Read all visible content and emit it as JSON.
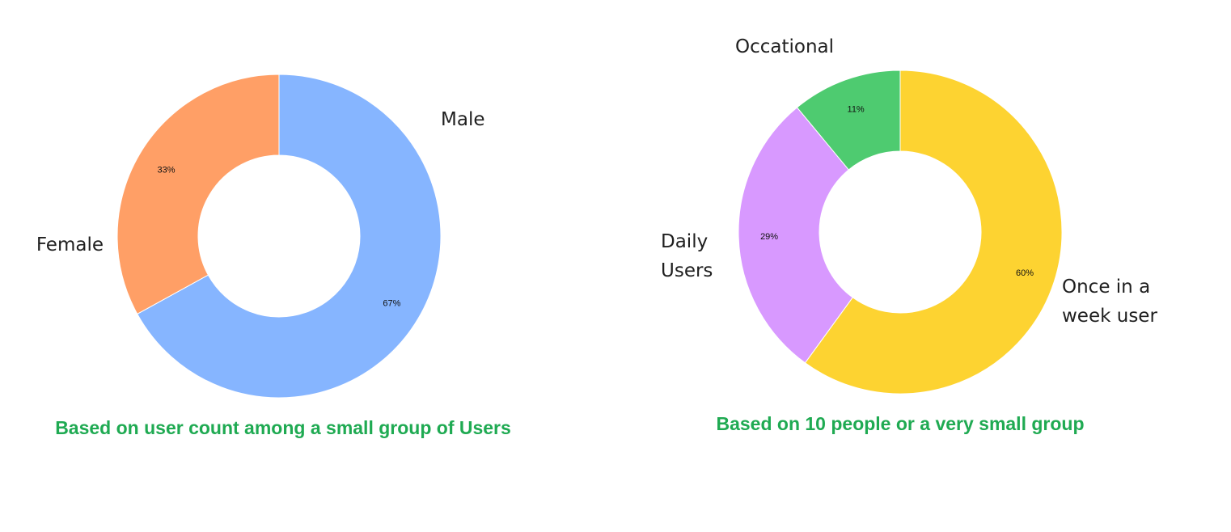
{
  "chart_data": [
    {
      "type": "pie",
      "donut": true,
      "slices": [
        {
          "label": "Male",
          "value": 67,
          "pct_label": "67%",
          "color": "#86b5ff"
        },
        {
          "label": "Female",
          "value": 33,
          "pct_label": "33%",
          "color": "#ff9f66"
        }
      ],
      "caption": "Based on user count among a small group of Users",
      "caption_color": "#1faa52"
    },
    {
      "type": "pie",
      "donut": true,
      "slices": [
        {
          "label": "Once in a week user",
          "label_lines": [
            "Once in a",
            "week user"
          ],
          "value": 60,
          "pct_label": "60%",
          "color": "#fdd331"
        },
        {
          "label": "Daily Users",
          "label_lines": [
            "Daily",
            "Users"
          ],
          "value": 29,
          "pct_label": "29%",
          "color": "#d899ff"
        },
        {
          "label": "Occational",
          "label_lines": [
            "Occational"
          ],
          "value": 11,
          "pct_label": "11%",
          "color": "#4ecb70"
        }
      ],
      "caption": "Based on 10 people or a very small group",
      "caption_color": "#1faa52"
    }
  ]
}
